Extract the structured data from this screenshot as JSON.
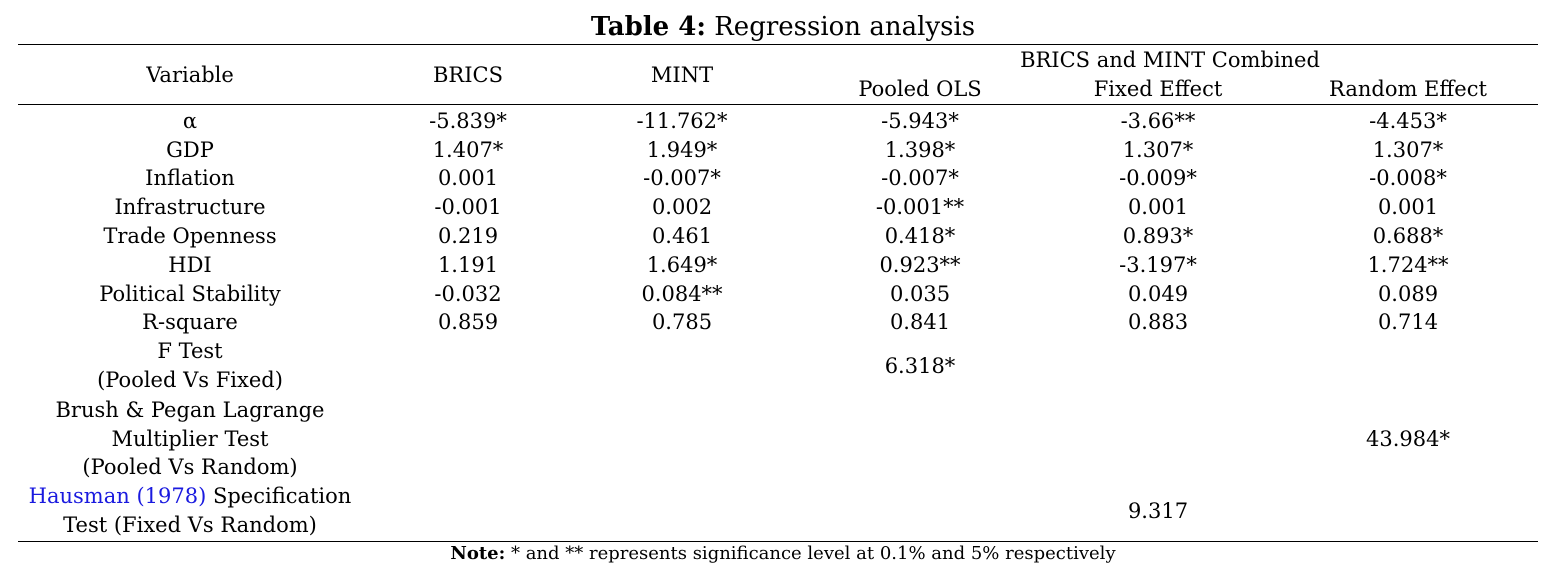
{
  "table": {
    "caption_label": "Table 4:",
    "caption_text": "Regression analysis",
    "headers": {
      "variable": "Variable",
      "brics": "BRICS",
      "mint": "MINT",
      "combined": "BRICS and MINT Combined",
      "pooled": "Pooled OLS",
      "fixed": "Fixed Effect",
      "random": "Random Effect"
    },
    "rows": [
      {
        "variable": "α",
        "brics": "-5.839*",
        "mint": "-11.762*",
        "pooled": "-5.943*",
        "fixed": "-3.66**",
        "random": "-4.453*"
      },
      {
        "variable": "GDP",
        "brics": "1.407*",
        "mint": "1.949*",
        "pooled": "1.398*",
        "fixed": "1.307*",
        "random": "1.307*"
      },
      {
        "variable": "Inflation",
        "brics": "0.001",
        "mint": "-0.007*",
        "pooled": "-0.007*",
        "fixed": "-0.009*",
        "random": "-0.008*"
      },
      {
        "variable": "Infrastructure",
        "brics": "-0.001",
        "mint": "0.002",
        "pooled": "-0.001**",
        "fixed": "0.001",
        "random": "0.001"
      },
      {
        "variable": "Trade Openness",
        "brics": "0.219",
        "mint": "0.461",
        "pooled": "0.418*",
        "fixed": "0.893*",
        "random": "0.688*"
      },
      {
        "variable": "HDI",
        "brics": "1.191",
        "mint": "1.649*",
        "pooled": "0.923**",
        "fixed": "-3.197*",
        "random": "1.724**"
      },
      {
        "variable": "Political Stability",
        "brics": "-0.032",
        "mint": "0.084**",
        "pooled": "0.035",
        "fixed": "0.049",
        "random": "0.089"
      },
      {
        "variable": "R-square",
        "brics": "0.859",
        "mint": "0.785",
        "pooled": "0.841",
        "fixed": "0.883",
        "random": "0.714"
      }
    ],
    "tests": {
      "f_test": {
        "line1": "F Test",
        "line2": "(Pooled Vs Fixed)",
        "value": "6.318*"
      },
      "lm_test": {
        "line1": "Brush & Pegan Lagrange",
        "line2": "Multiplier Test",
        "line3": "(Pooled Vs Random)",
        "value": "43.984*"
      },
      "hausman": {
        "link": "Hausman (1978)",
        "line1_rest": " Specification",
        "line2": "Test (Fixed Vs Random)",
        "value": "9.317"
      }
    },
    "note_label": "Note:",
    "note_text": " * and ** represents significance level at 0.1% and 5% respectively"
  }
}
